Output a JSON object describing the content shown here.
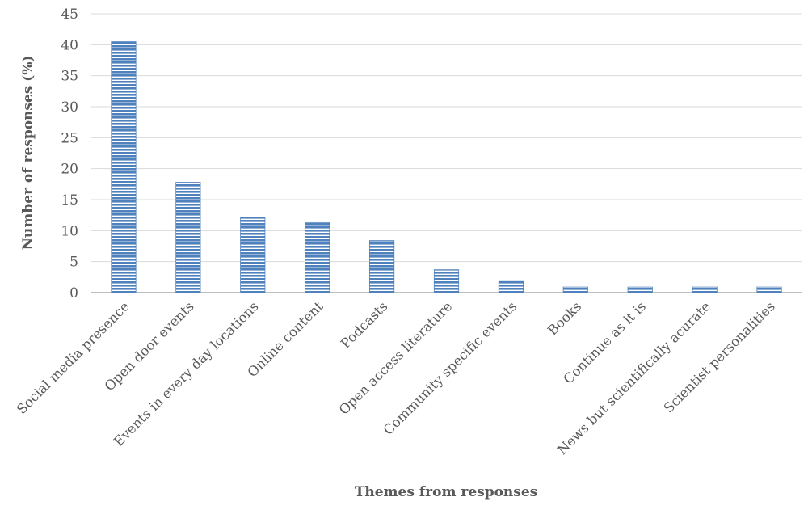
{
  "chart_data": {
    "type": "bar",
    "title": "",
    "xlabel": "Themes from responses",
    "ylabel": "Number of responses (%)",
    "ylim": [
      0,
      45
    ],
    "yticks": [
      0,
      5,
      10,
      15,
      20,
      25,
      30,
      35,
      40,
      45
    ],
    "grid": true,
    "legend": "none",
    "categories": [
      "Social media presence",
      "Open door events",
      "Events in every day locations",
      "Online content",
      "Podcasts",
      "Open access literature",
      "Community specific events",
      "Books",
      "Continue as it is",
      "News but scientifically acurate",
      "Scientist personalities"
    ],
    "values": [
      40.5,
      17.8,
      12.2,
      11.3,
      8.4,
      3.7,
      1.8,
      0.9,
      0.9,
      0.9,
      0.9
    ],
    "bar_color": "#4f81bd",
    "bar_stripe_color": "#ffffff"
  }
}
